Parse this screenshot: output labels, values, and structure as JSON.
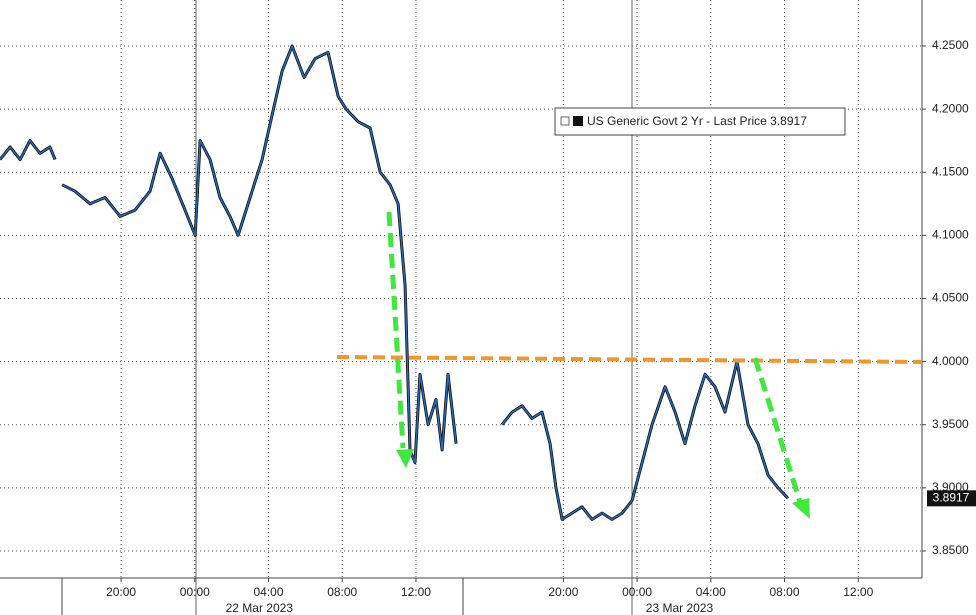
{
  "chart_data": {
    "type": "line",
    "xlim": [
      -10.57,
      39.46
    ],
    "ylim": [
      3.8286,
      4.2864
    ],
    "xticks": [
      {
        "value": -4,
        "label": "20:00"
      },
      {
        "value": 0,
        "label": "00:00"
      },
      {
        "value": 4,
        "label": "04:00"
      },
      {
        "value": 8,
        "label": "08:00"
      },
      {
        "value": 12,
        "label": "12:00"
      },
      {
        "value": 20,
        "label": "20:00"
      },
      {
        "value": 24,
        "label": "00:00"
      },
      {
        "value": 28,
        "label": "04:00"
      },
      {
        "value": 32,
        "label": "08:00"
      },
      {
        "value": 36,
        "label": "12:00"
      }
    ],
    "date_labels": [
      {
        "value": 3.5,
        "label": "22 Mar 2023"
      },
      {
        "value": 26.3,
        "label": "23 Mar 2023"
      }
    ],
    "yticks": [
      {
        "value": 4.25,
        "label": "4.2500"
      },
      {
        "value": 4.2,
        "label": "4.2000"
      },
      {
        "value": 4.15,
        "label": "4.1500"
      },
      {
        "value": 4.1,
        "label": "4.1000"
      },
      {
        "value": 4.05,
        "label": "4.0500"
      },
      {
        "value": 4.0,
        "label": "4.0000"
      },
      {
        "value": 3.95,
        "label": "3.9500"
      },
      {
        "value": 3.9,
        "label": "3.9000"
      },
      {
        "value": 3.85,
        "label": "3.8500"
      }
    ],
    "grid": true,
    "last_price": 3.8917,
    "series": [
      {
        "name": "US Generic Govt 2 Yr - Last Price 3.8917",
        "color": "#2a6ebb",
        "x": [
          -10.57,
          -10.02,
          -9.48,
          -8.94,
          -8.4,
          -7.86,
          -7.58,
          -7.4,
          -7.2,
          -6.5,
          -5.68,
          -4.87,
          -4.05,
          -3.24,
          -2.43,
          -1.88,
          -1.23,
          -0.53,
          0.02,
          0.29,
          0.83,
          1.37,
          1.91,
          2.35,
          3.0,
          3.65,
          4.19,
          4.74,
          5.28,
          5.93,
          6.53,
          7.23,
          7.78,
          8.21,
          8.86,
          9.51,
          10.06,
          10.6,
          11.03,
          11.41,
          11.68,
          11.95,
          12.22,
          12.66,
          13.09,
          13.42,
          13.74,
          14.18,
          15,
          16.67,
          17.22,
          17.76,
          18.3,
          18.84,
          19.28,
          19.6,
          19.93,
          20.47,
          21.01,
          21.56,
          22.1,
          22.64,
          23.19,
          23.73,
          24.27,
          24.81,
          25.52,
          26.06,
          26.6,
          27.14,
          27.69,
          28.23,
          28.77,
          29.42,
          30.02,
          30.56,
          31.11,
          31.65,
          32.19
        ],
        "values": [
          4.16,
          4.17,
          4.16,
          4.175,
          4.165,
          4.17,
          4.16,
          null,
          4.14,
          4.135,
          4.125,
          4.13,
          4.115,
          4.12,
          4.135,
          4.165,
          4.145,
          4.12,
          4.1,
          4.175,
          4.16,
          4.13,
          4.115,
          4.1,
          4.13,
          4.16,
          4.195,
          4.23,
          4.25,
          4.225,
          4.24,
          4.245,
          4.21,
          4.2,
          4.19,
          4.185,
          4.15,
          4.14,
          4.125,
          4.06,
          3.93,
          3.92,
          3.99,
          3.95,
          3.97,
          3.93,
          3.99,
          3.935,
          null,
          3.95,
          3.96,
          3.965,
          3.955,
          3.96,
          3.935,
          3.9,
          3.875,
          3.88,
          3.885,
          3.875,
          3.88,
          3.875,
          3.88,
          3.89,
          3.92,
          3.95,
          3.98,
          3.96,
          3.935,
          3.965,
          3.99,
          3.98,
          3.96,
          4.0,
          3.95,
          3.935,
          3.91,
          3.9,
          3.8917
        ]
      }
    ]
  }
}
